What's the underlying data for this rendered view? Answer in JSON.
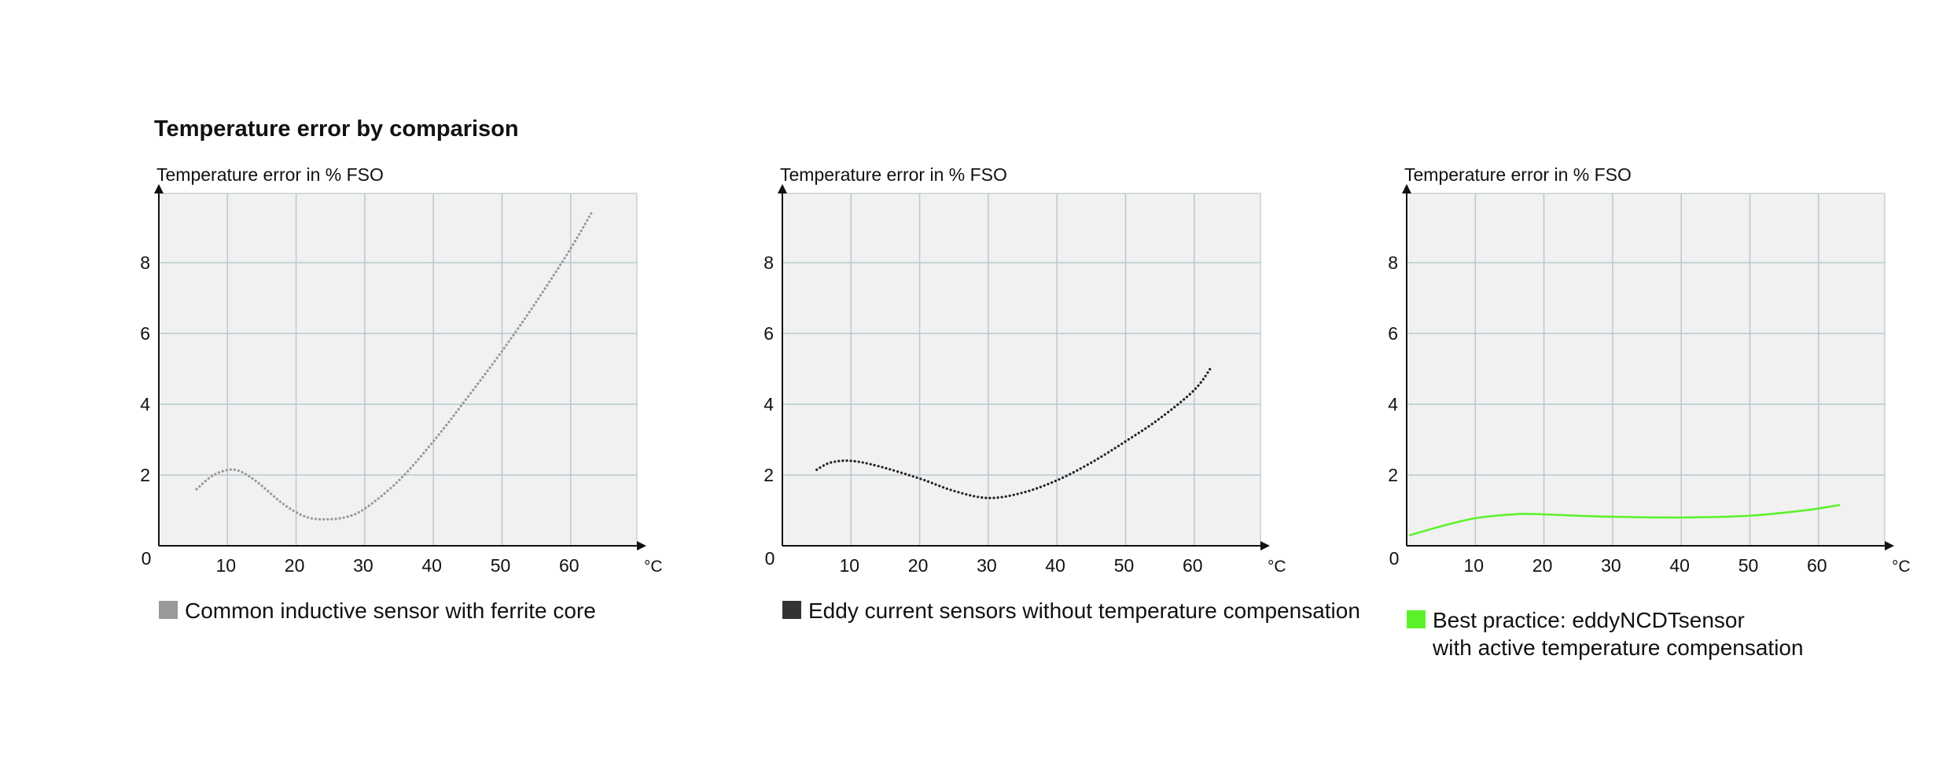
{
  "title": "Temperature error by comparison",
  "chart_data": [
    {
      "type": "line",
      "ylabel": "Temperature error in % FSO",
      "xlabel": "°C",
      "x_ticks": [
        10,
        20,
        30,
        40,
        50,
        60
      ],
      "y_ticks": [
        0,
        2,
        4,
        6,
        8
      ],
      "xlim": [
        0,
        70
      ],
      "ylim": [
        0,
        10
      ],
      "grid": true,
      "line_style": "dotted",
      "color": "#999999",
      "legend": {
        "label": "Common inductive sensor with ferrite core",
        "color": "#999999"
      },
      "series": [
        {
          "points": [
            [
              5.5,
              1.6
            ],
            [
              8,
              2.0
            ],
            [
              11,
              2.15
            ],
            [
              14,
              1.85
            ],
            [
              18,
              1.2
            ],
            [
              21,
              0.85
            ],
            [
              23.5,
              0.75
            ],
            [
              27,
              0.8
            ],
            [
              30,
              1.05
            ],
            [
              35,
              1.85
            ],
            [
              40,
              2.95
            ],
            [
              45,
              4.2
            ],
            [
              50,
              5.5
            ],
            [
              55,
              6.9
            ],
            [
              60,
              8.4
            ],
            [
              63,
              9.4
            ]
          ]
        }
      ]
    },
    {
      "type": "line",
      "ylabel": "Temperature error in % FSO",
      "xlabel": "°C",
      "x_ticks": [
        10,
        20,
        30,
        40,
        50,
        60
      ],
      "y_ticks": [
        0,
        2,
        4,
        6,
        8
      ],
      "xlim": [
        0,
        70
      ],
      "ylim": [
        0,
        10
      ],
      "grid": true,
      "line_style": "dotted",
      "color": "#222222",
      "legend": {
        "label": "Eddy current sensors without temperature compensation",
        "color": "#333333"
      },
      "series": [
        {
          "points": [
            [
              5,
              2.15
            ],
            [
              7,
              2.35
            ],
            [
              10,
              2.4
            ],
            [
              14,
              2.25
            ],
            [
              20,
              1.9
            ],
            [
              25,
              1.55
            ],
            [
              30,
              1.35
            ],
            [
              35,
              1.5
            ],
            [
              40,
              1.85
            ],
            [
              45,
              2.35
            ],
            [
              50,
              2.95
            ],
            [
              55,
              3.6
            ],
            [
              60,
              4.4
            ],
            [
              62.5,
              5.05
            ]
          ]
        }
      ]
    },
    {
      "type": "line",
      "ylabel": "Temperature error in % FSO",
      "xlabel": "°C",
      "x_ticks": [
        10,
        20,
        30,
        40,
        50,
        60
      ],
      "y_ticks": [
        0,
        2,
        4,
        6,
        8
      ],
      "xlim": [
        0,
        70
      ],
      "ylim": [
        0,
        10
      ],
      "grid": true,
      "line_style": "solid",
      "color": "#5cf22a",
      "legend": {
        "label": "Best practice: eddyNCDTsensor",
        "label2": "with active temperature compensation",
        "color": "#5cf22a"
      },
      "series": [
        {
          "points": [
            [
              0.5,
              0.3
            ],
            [
              5,
              0.55
            ],
            [
              10,
              0.78
            ],
            [
              15,
              0.88
            ],
            [
              18,
              0.9
            ],
            [
              25,
              0.85
            ],
            [
              30,
              0.82
            ],
            [
              40,
              0.8
            ],
            [
              50,
              0.85
            ],
            [
              58,
              1.0
            ],
            [
              63,
              1.15
            ]
          ]
        }
      ]
    }
  ]
}
